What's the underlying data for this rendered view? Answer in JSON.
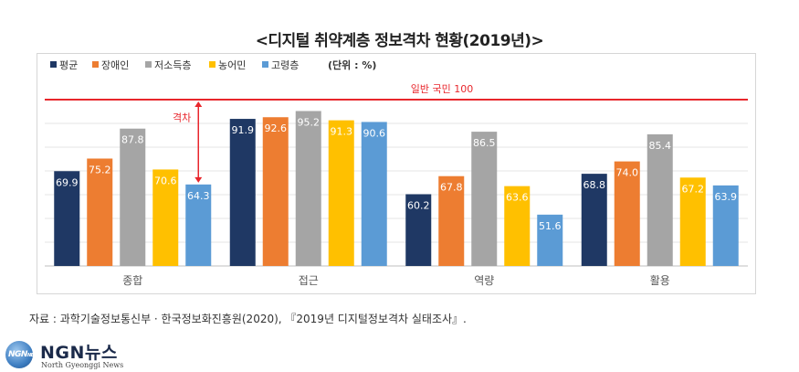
{
  "title": "<디지털 취약계층 정보격차 현황(2019년)>",
  "source": "자료 : 과학기술정보통신부 · 한국정보화진흥원(2020), 『2019년 디지털정보격차 실태조사』.",
  "logo": {
    "mark": "NGN",
    "mark_suffix": "NEWS",
    "name": "NGN뉴스",
    "sub": "North Gyeonggi News"
  },
  "chart_data": {
    "type": "bar",
    "unit": "(단위 : %)",
    "categories": [
      "종합",
      "접근",
      "역량",
      "활용"
    ],
    "series": [
      {
        "name": "평균",
        "color": "#1f3864",
        "values": [
          69.9,
          91.9,
          60.2,
          68.8
        ]
      },
      {
        "name": "장애인",
        "color": "#ed7d31",
        "values": [
          75.2,
          92.6,
          67.8,
          74.0
        ]
      },
      {
        "name": "저소득층",
        "color": "#a5a5a5",
        "values": [
          87.8,
          95.2,
          86.5,
          85.4
        ]
      },
      {
        "name": "농어민",
        "color": "#ffc000",
        "values": [
          70.6,
          91.3,
          63.6,
          67.2
        ]
      },
      {
        "name": "고령층",
        "color": "#5b9bd5",
        "values": [
          64.3,
          90.6,
          51.6,
          63.9
        ]
      }
    ],
    "value_labels": [
      [
        "69.9",
        "91.9",
        "60.2",
        "68.8"
      ],
      [
        "75.2",
        "92.6",
        "67.8",
        "74.0"
      ],
      [
        "87.8",
        "95.2",
        "86.5",
        "85.4"
      ],
      [
        "70.6",
        "91.3",
        "63.6",
        "67.2"
      ],
      [
        "64.3",
        "90.6",
        "51.6",
        "63.9"
      ]
    ],
    "ylim": [
      30,
      100
    ],
    "reference": {
      "label": "일반 국민 100",
      "value": 100,
      "color": "#e8262c"
    },
    "gap_annotation": {
      "label": "격차",
      "from": 64.3,
      "to": 100,
      "category_index": 0,
      "series_index": 4
    },
    "legend_position": "top-left",
    "grid": true
  }
}
